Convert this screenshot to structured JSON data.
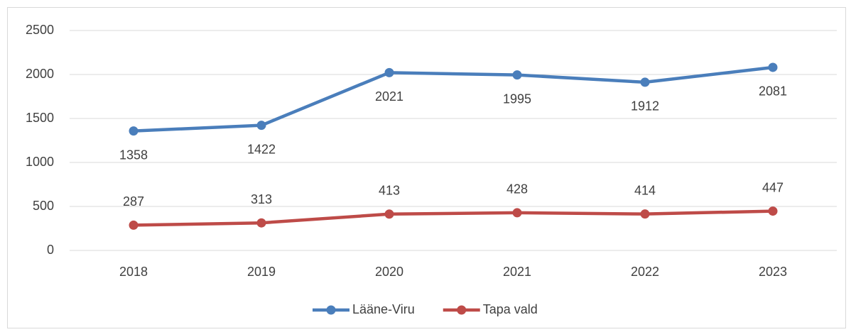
{
  "chart_data": {
    "type": "line",
    "categories": [
      "2018",
      "2019",
      "2020",
      "2021",
      "2022",
      "2023"
    ],
    "series": [
      {
        "name": "Lääne-Viru",
        "color": "#4a7ebb",
        "values": [
          1358,
          1422,
          2021,
          1995,
          1912,
          2081
        ],
        "label_position": "below"
      },
      {
        "name": "Tapa vald",
        "color": "#be4b48",
        "values": [
          287,
          313,
          413,
          428,
          414,
          447
        ],
        "label_position": "above"
      }
    ],
    "ylim": [
      0,
      2500
    ],
    "yticks": [
      0,
      500,
      1000,
      1500,
      2000,
      2500
    ],
    "grid": true,
    "legend": "bottom"
  }
}
